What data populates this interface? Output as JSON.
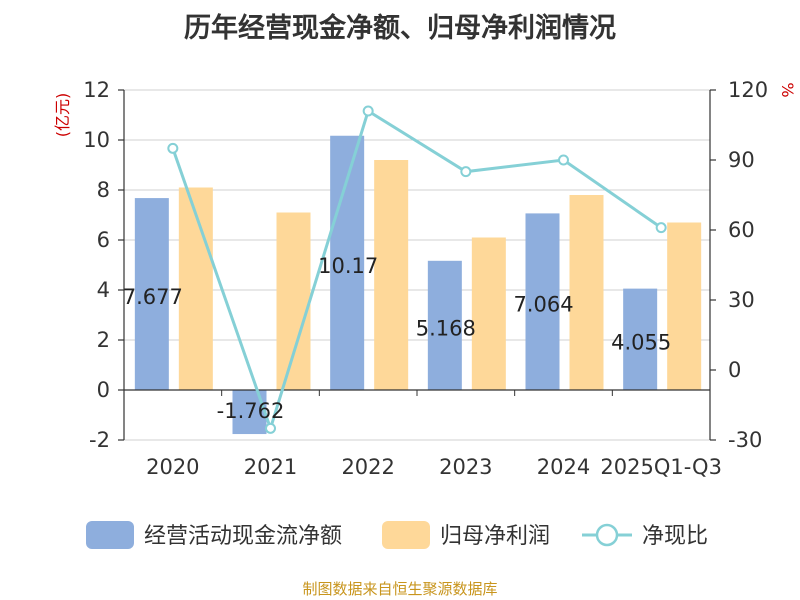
{
  "chart_data": {
    "type": "bar",
    "title": "历年经营现金净额、归母净利润情况",
    "categories": [
      "2020",
      "2021",
      "2022",
      "2023",
      "2024",
      "2025Q1-Q3"
    ],
    "series": [
      {
        "name": "经营活动现金流净额",
        "axis": "left",
        "kind": "bar",
        "color": "#8eaedd",
        "values": [
          7.677,
          -1.762,
          10.17,
          5.168,
          7.064,
          4.055
        ]
      },
      {
        "name": "归母净利润",
        "axis": "left",
        "kind": "bar",
        "color": "#fed899",
        "values": [
          8.1,
          7.1,
          9.2,
          6.1,
          7.8,
          6.7
        ]
      },
      {
        "name": "净现比",
        "axis": "right",
        "kind": "line",
        "color": "#85d0d6",
        "values": [
          95,
          -25,
          111,
          85,
          90,
          61
        ]
      }
    ],
    "data_labels": [
      "7.677",
      "-1.762",
      "10.17",
      "5.168",
      "7.064",
      "4.055"
    ],
    "left_axis": {
      "label": "(亿元)",
      "min": -2,
      "max": 12,
      "ticks": [
        -2,
        0,
        2,
        4,
        6,
        8,
        10,
        12
      ]
    },
    "right_axis": {
      "label": "%",
      "min": -30,
      "max": 120,
      "ticks": [
        -30,
        0,
        30,
        60,
        90,
        120
      ]
    },
    "grid": true,
    "legend_position": "bottom"
  },
  "source": "制图数据来自恒生聚源数据库",
  "colors": {
    "axis_label": "#cc0000",
    "source_text": "#c8951d",
    "grid": "#d0d0d0"
  }
}
